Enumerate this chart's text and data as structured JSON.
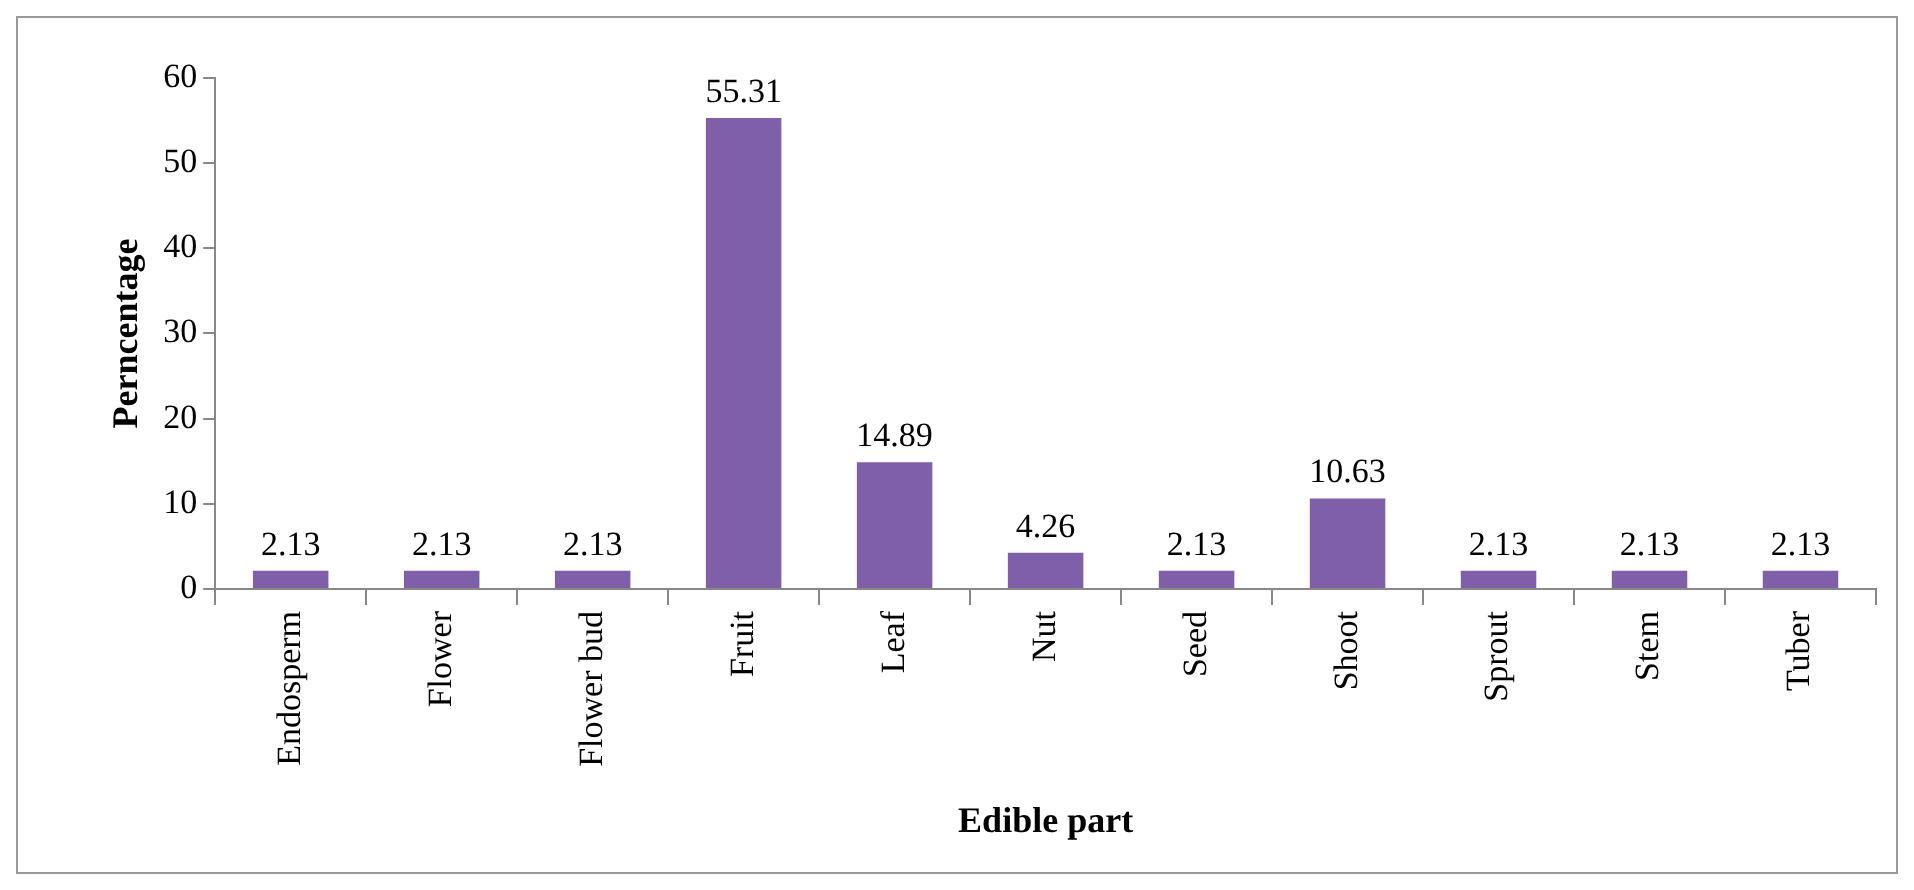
{
  "chart_data": {
    "type": "bar",
    "xlabel": "Edible part",
    "ylabel": "Perncentage",
    "categories": [
      "Endosperm",
      "Flower",
      "Flower bud",
      "Fruit",
      "Leaf",
      "Nut",
      "Seed",
      "Shoot",
      "Sprout",
      "Stem",
      "Tuber"
    ],
    "values": [
      2.13,
      2.13,
      2.13,
      55.31,
      14.89,
      4.26,
      2.13,
      10.63,
      2.13,
      2.13,
      2.13
    ],
    "color": "#7f5fa8",
    "ylim": [
      0,
      60
    ],
    "yticks": [
      0,
      10,
      20,
      30,
      40,
      50,
      60
    ],
    "grid": false,
    "legend": false,
    "data_labels": true
  }
}
